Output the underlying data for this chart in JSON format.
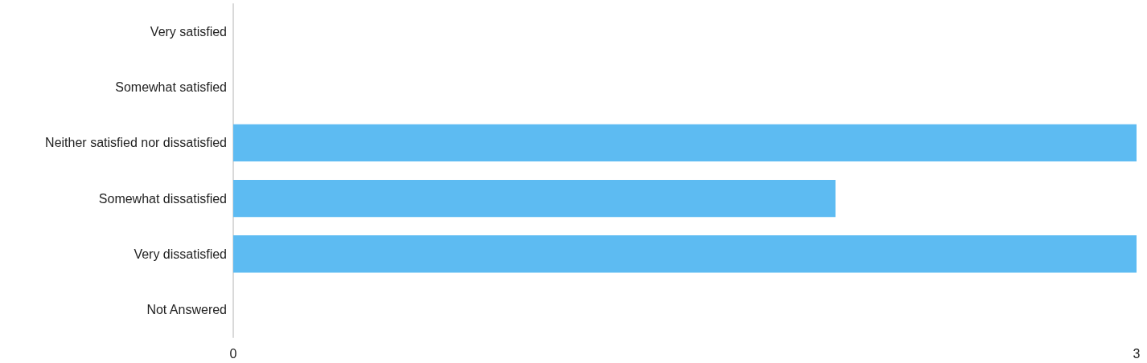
{
  "chart_data": {
    "type": "bar",
    "orientation": "horizontal",
    "categories": [
      "Very satisfied",
      "Somewhat satisfied",
      "Neither satisfied nor dissatisfied",
      "Somewhat dissatisfied",
      "Very dissatisfied",
      "Not Answered"
    ],
    "values": [
      0,
      0,
      3,
      2,
      3,
      0
    ],
    "color": "#5dbbf2",
    "xlim": [
      0,
      3
    ],
    "xticks": [
      0,
      3
    ],
    "grid": false
  }
}
